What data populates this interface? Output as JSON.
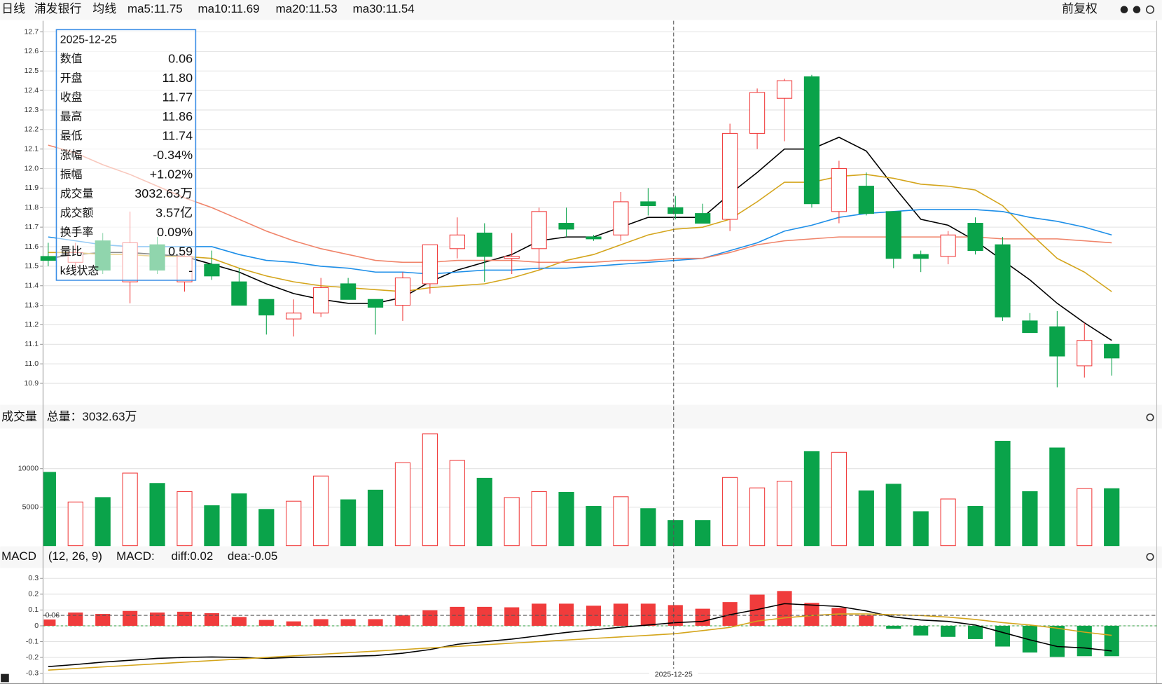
{
  "header": {
    "period": "日线",
    "stock": "浦发银行",
    "indicator": "均线",
    "adjust": "前复权"
  },
  "tooltip": {
    "date": "2025-12-25",
    "rows": [
      [
        "数值",
        "0.06"
      ],
      [
        "开盘",
        "11.80"
      ],
      [
        "收盘",
        "11.77"
      ],
      [
        "最高",
        "11.86"
      ],
      [
        "最低",
        "11.74"
      ],
      [
        "涨幅",
        "-0.34%"
      ],
      [
        "振幅",
        "+1.02%"
      ],
      [
        "成交量",
        "3032.63万"
      ],
      [
        "成交额",
        "3.57亿"
      ],
      [
        "换手率",
        "0.09%"
      ],
      [
        "量比",
        "0.59"
      ],
      [
        "k线状态",
        "-"
      ]
    ]
  },
  "x_label": "2025-12-25",
  "crosshair_label": "0.06",
  "chart_data": [
    {
      "type": "candlestick",
      "up_color": "#f03c3c",
      "down_color": "#0aa34a",
      "open": [
        11.55,
        11.52,
        11.63,
        11.42,
        11.61,
        11.42,
        11.51,
        11.42,
        11.33,
        11.23,
        11.26,
        11.41,
        11.33,
        11.3,
        11.41,
        11.59,
        11.67,
        11.54,
        11.59,
        11.72,
        11.65,
        11.66,
        11.83,
        11.8,
        11.77,
        11.74,
        12.18,
        12.36,
        12.47,
        11.78,
        11.91,
        11.78,
        11.56,
        11.55,
        11.72,
        11.61,
        11.22,
        11.19,
        10.99,
        11.1
      ],
      "high": [
        11.62,
        11.62,
        11.67,
        11.78,
        11.65,
        11.58,
        11.58,
        11.49,
        11.33,
        11.33,
        11.44,
        11.44,
        11.33,
        11.47,
        11.61,
        11.75,
        11.72,
        11.67,
        11.8,
        11.8,
        11.66,
        11.88,
        11.9,
        11.86,
        11.82,
        12.23,
        12.41,
        12.46,
        12.48,
        12.04,
        11.98,
        11.78,
        11.58,
        11.68,
        11.75,
        11.65,
        11.26,
        11.27,
        11.21,
        11.1
      ],
      "low": [
        11.5,
        11.48,
        11.46,
        11.31,
        11.46,
        11.37,
        11.43,
        11.3,
        11.15,
        11.14,
        11.24,
        11.33,
        11.15,
        11.22,
        11.36,
        11.54,
        11.42,
        11.46,
        11.48,
        11.65,
        11.63,
        11.63,
        11.76,
        11.74,
        11.72,
        11.68,
        12.1,
        12.14,
        11.8,
        11.72,
        11.76,
        11.49,
        11.47,
        11.51,
        11.56,
        11.22,
        11.16,
        10.88,
        10.93,
        10.94
      ],
      "close": [
        11.53,
        11.57,
        11.48,
        11.62,
        11.48,
        11.55,
        11.45,
        11.3,
        11.25,
        11.26,
        11.39,
        11.33,
        11.29,
        11.44,
        11.61,
        11.66,
        11.55,
        11.55,
        11.78,
        11.69,
        11.64,
        11.83,
        11.81,
        11.77,
        11.72,
        12.18,
        12.39,
        12.45,
        11.82,
        12.0,
        11.77,
        11.54,
        11.54,
        11.66,
        11.58,
        11.24,
        11.16,
        11.04,
        11.12,
        11.03
      ],
      "series": [
        {
          "name": "ma5:11.75",
          "color": "#000000",
          "values": [
            11.54,
            11.56,
            11.57,
            11.57,
            11.56,
            11.55,
            11.51,
            11.47,
            11.41,
            11.36,
            11.33,
            11.31,
            11.31,
            11.34,
            11.42,
            11.48,
            11.52,
            11.56,
            11.63,
            11.65,
            11.65,
            11.7,
            11.75,
            11.75,
            11.75,
            11.87,
            11.98,
            12.1,
            12.1,
            12.16,
            12.09,
            11.91,
            11.74,
            11.71,
            11.63,
            11.53,
            11.43,
            11.31,
            11.21,
            11.12
          ]
        },
        {
          "name": "ma10:11.69",
          "color": "#d4a51c",
          "values": [
            11.57,
            11.57,
            11.56,
            11.56,
            11.55,
            11.55,
            11.54,
            11.49,
            11.45,
            11.42,
            11.4,
            11.39,
            11.38,
            11.37,
            11.39,
            11.4,
            11.41,
            11.44,
            11.48,
            11.53,
            11.56,
            11.61,
            11.66,
            11.69,
            11.7,
            11.74,
            11.83,
            11.93,
            11.93,
            11.96,
            11.97,
            11.95,
            11.92,
            11.91,
            11.89,
            11.81,
            11.67,
            11.54,
            11.47,
            11.37
          ]
        },
        {
          "name": "ma20:11.53",
          "color": "#1e8fe8",
          "values": [
            11.65,
            11.63,
            11.61,
            11.6,
            11.6,
            11.6,
            11.6,
            11.56,
            11.53,
            11.52,
            11.5,
            11.49,
            11.47,
            11.47,
            11.46,
            11.47,
            11.48,
            11.48,
            11.49,
            11.49,
            11.5,
            11.51,
            11.52,
            11.53,
            11.54,
            11.58,
            11.62,
            11.68,
            11.71,
            11.75,
            11.77,
            11.78,
            11.79,
            11.79,
            11.79,
            11.78,
            11.75,
            11.73,
            11.7,
            11.66
          ]
        },
        {
          "name": "ma30:11.54",
          "color": "#f0846a",
          "values": [
            12.12,
            12.08,
            12.02,
            11.97,
            11.91,
            11.85,
            11.8,
            11.74,
            11.68,
            11.63,
            11.59,
            11.56,
            11.53,
            11.52,
            11.52,
            11.53,
            11.53,
            11.53,
            11.52,
            11.52,
            11.52,
            11.53,
            11.53,
            11.54,
            11.54,
            11.57,
            11.61,
            11.63,
            11.64,
            11.65,
            11.65,
            11.65,
            11.65,
            11.65,
            11.65,
            11.64,
            11.64,
            11.64,
            11.63,
            11.62
          ]
        }
      ],
      "ylim": [
        10.794,
        12.757
      ],
      "yticks": [
        10.9,
        {
          "value": 11.0,
          "label": "11.0"
        },
        11.1,
        11.2,
        11.3,
        11.4,
        11.5,
        11.6,
        11.7,
        11.8,
        11.9,
        {
          "value": 12.0,
          "label": "12.0"
        },
        12.1,
        12.2,
        12.3,
        12.4,
        12.5,
        12.6,
        12.7
      ],
      "grid": true
    },
    {
      "type": "bar",
      "title": "成交量",
      "subtitle": "总量：3032.63万",
      "up_color": "#f03c3c",
      "down_color": "#0aa34a",
      "values": [
        9520,
        5670,
        6250,
        9420,
        8080,
        7020,
        5190,
        6730,
        4710,
        5770,
        9040,
        5960,
        7210,
        10770,
        14520,
        11060,
        8750,
        6250,
        7020,
        6920,
        5100,
        6350,
        4810,
        3270,
        3270,
        8850,
        7500,
        8370,
        12210,
        12120,
        7120,
        7980,
        4420,
        6060,
        5100,
        13560,
        7020,
        12690,
        7400,
        7400
      ],
      "ylim": [
        0,
        15200
      ],
      "yticks": [
        5000,
        10000
      ],
      "grid": true
    },
    {
      "type": "macd",
      "title": "MACD",
      "subtitle": "(12, 26, 9)",
      "up_color": "#f03c3c",
      "down_color": "#0aa34a",
      "series": [
        {
          "name": "MACD:",
          "color": "#f03c3c",
          "values": [
            0.04,
            0.084,
            0.075,
            0.094,
            0.084,
            0.089,
            0.08,
            0.056,
            0.037,
            0.028,
            0.042,
            0.042,
            0.042,
            0.066,
            0.098,
            0.12,
            0.12,
            0.117,
            0.14,
            0.14,
            0.127,
            0.14,
            0.14,
            0.131,
            0.108,
            0.15,
            0.197,
            0.22,
            0.145,
            0.113,
            0.066,
            -0.019,
            -0.061,
            -0.07,
            -0.084,
            -0.131,
            -0.169,
            -0.197,
            -0.192,
            -0.192
          ]
        },
        {
          "name": "diff:0.02",
          "color": "#000000",
          "values": [
            -0.258,
            -0.245,
            -0.23,
            -0.218,
            -0.206,
            -0.2,
            -0.197,
            -0.2,
            -0.206,
            -0.2,
            -0.197,
            -0.193,
            -0.188,
            -0.173,
            -0.15,
            -0.117,
            -0.1,
            -0.084,
            -0.063,
            -0.042,
            -0.025,
            -0.009,
            0.005,
            0.02,
            0.028,
            0.07,
            0.103,
            0.14,
            0.131,
            0.122,
            0.094,
            0.056,
            0.037,
            0.028,
            0.005,
            -0.042,
            -0.089,
            -0.131,
            -0.14,
            -0.159
          ]
        },
        {
          "name": "dea:-0.05",
          "color": "#d4a51c",
          "values": [
            -0.28,
            -0.27,
            -0.26,
            -0.25,
            -0.24,
            -0.23,
            -0.22,
            -0.21,
            -0.2,
            -0.19,
            -0.18,
            -0.17,
            -0.16,
            -0.15,
            -0.14,
            -0.13,
            -0.12,
            -0.11,
            -0.1,
            -0.09,
            -0.08,
            -0.07,
            -0.06,
            -0.05,
            -0.03,
            -0.01,
            0.03,
            0.05,
            0.065,
            0.075,
            0.075,
            0.07,
            0.065,
            0.055,
            0.04,
            0.02,
            0.005,
            -0.015,
            -0.04,
            -0.06
          ]
        }
      ],
      "ylim": [
        -0.356,
        0.366
      ],
      "yticks": [
        0.3,
        0.2,
        0.1,
        0,
        -0.1,
        -0.2,
        -0.3
      ],
      "grid": true
    }
  ]
}
